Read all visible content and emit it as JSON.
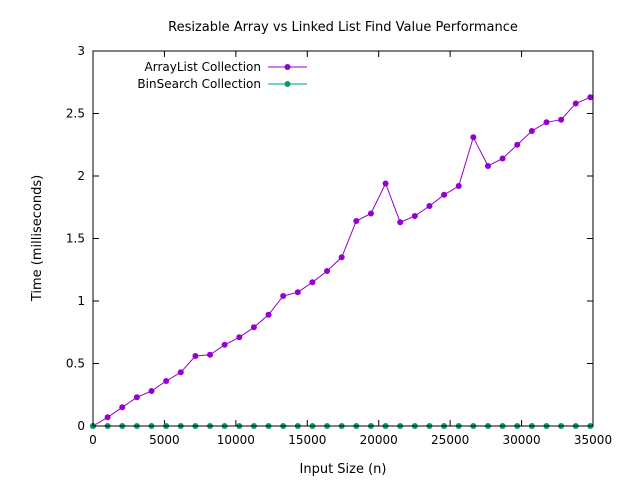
{
  "chart_data": {
    "type": "line",
    "title": "Resizable Array vs Linked List Find Value Performance",
    "xlabel": "Input Size (n)",
    "ylabel": "Time (milliseconds)",
    "xlim": [
      0,
      35000
    ],
    "ylim": [
      0,
      3
    ],
    "x_ticks": [
      0,
      5000,
      10000,
      15000,
      20000,
      25000,
      30000,
      35000
    ],
    "x_tick_labels": [
      "0",
      "5000",
      "10000",
      "15000",
      "20000",
      "25000",
      "30000",
      "35000"
    ],
    "y_ticks": [
      0,
      0.5,
      1,
      1.5,
      2,
      2.5,
      3
    ],
    "y_tick_labels": [
      "0",
      "0.5",
      "1",
      "1.5",
      "2",
      "2.5",
      "3"
    ],
    "grid": false,
    "legend_position": "top-left",
    "x": [
      0,
      1024,
      2048,
      3072,
      4096,
      5120,
      6144,
      7168,
      8192,
      9216,
      10240,
      11264,
      12288,
      13312,
      14336,
      15360,
      16384,
      17408,
      18432,
      19456,
      20480,
      21504,
      22528,
      23552,
      24576,
      25600,
      26624,
      27648,
      28672,
      29696,
      30720,
      31744,
      32768,
      33792,
      34816
    ],
    "series": [
      {
        "name": "ArrayList Collection",
        "color": "#9400d3",
        "values": [
          0.0,
          0.07,
          0.15,
          0.23,
          0.28,
          0.36,
          0.43,
          0.56,
          0.57,
          0.65,
          0.71,
          0.79,
          0.89,
          1.04,
          1.07,
          1.15,
          1.24,
          1.35,
          1.64,
          1.7,
          1.94,
          1.63,
          1.68,
          1.76,
          1.85,
          1.92,
          2.31,
          2.08,
          2.14,
          2.25,
          2.36,
          2.43,
          2.45,
          2.58,
          2.63
        ]
      },
      {
        "name": "BinSearch Collection",
        "color": "#009e73",
        "values": [
          0.0,
          0.0,
          0.0,
          0.0,
          0.0,
          0.0,
          0.0,
          0.0,
          0.0,
          0.0,
          0.0,
          0.0,
          0.0,
          0.0,
          0.0,
          0.0,
          0.0,
          0.0,
          0.0,
          0.0,
          0.0,
          0.0,
          0.0,
          0.0,
          0.0,
          0.0,
          0.0,
          0.0,
          0.0,
          0.0,
          0.0,
          0.0,
          0.0,
          0.0,
          0.0
        ]
      }
    ]
  }
}
